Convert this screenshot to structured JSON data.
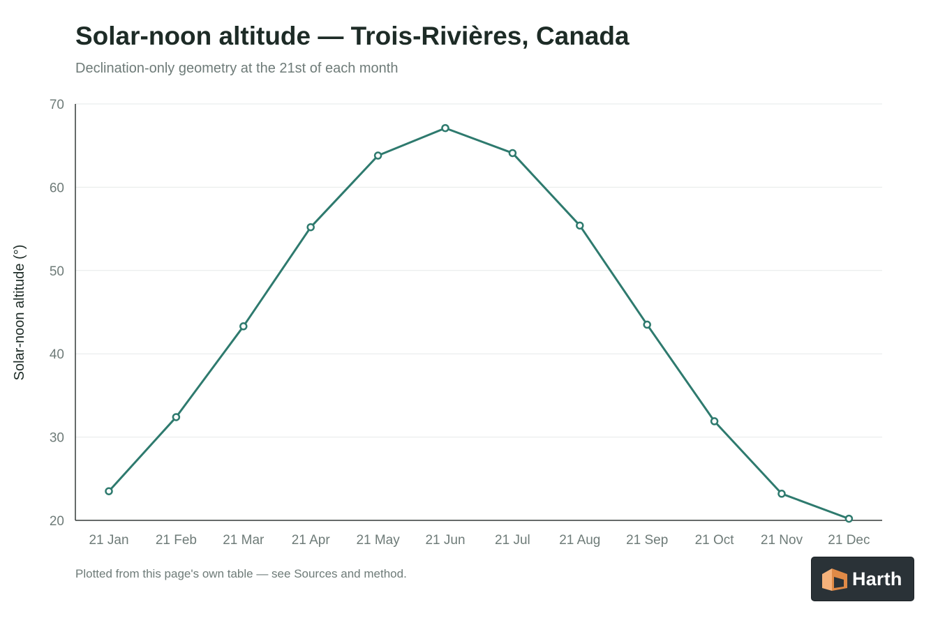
{
  "chart_data": {
    "type": "line",
    "title": "Solar-noon altitude — Trois-Rivières, Canada",
    "subtitle": "Declination-only geometry at the 21st of each month",
    "xlabel": "",
    "ylabel": "Solar-noon altitude (°)",
    "categories": [
      "21 Jan",
      "21 Feb",
      "21 Mar",
      "21 Apr",
      "21 May",
      "21 Jun",
      "21 Jul",
      "21 Aug",
      "21 Sep",
      "21 Oct",
      "21 Nov",
      "21 Dec"
    ],
    "series": [
      {
        "values": [
          23.5,
          32.4,
          43.3,
          55.2,
          63.8,
          67.1,
          64.1,
          55.4,
          43.5,
          31.9,
          23.2,
          20.2
        ]
      }
    ],
    "ylim": [
      20,
      70
    ],
    "yticks": [
      20,
      30,
      40,
      50,
      60,
      70
    ],
    "grid": "horizontal",
    "legend": "none",
    "footnote": "Plotted from this page's own table — see Sources and method.",
    "colors": {
      "series": "#2e7a6e",
      "title": "#1d2b26",
      "muted_text": "#6e7b78"
    }
  },
  "logo": {
    "text": "Harth",
    "icon": "house-cube-icon",
    "colors": {
      "background": "#2a3237",
      "mark_light": "#f6b27b",
      "mark_dark": "#e08a47"
    }
  }
}
